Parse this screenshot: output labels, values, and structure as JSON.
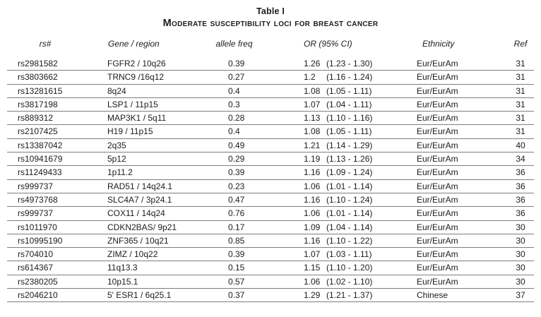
{
  "table": {
    "label": "Table I",
    "title": "Moderate susceptibility loci for breast cancer",
    "columns": [
      "rs#",
      "Gene / region",
      "allele freq",
      "OR (95% CI)",
      "Ethnicity",
      "Ref"
    ],
    "rows": [
      {
        "rs": "rs2981582",
        "gene": "FGFR2 / 10q26",
        "freq": "0.39",
        "or": "1.26",
        "ci": "(1.23 - 1.30)",
        "ethnicity": "Eur/EurAm",
        "ref": "31"
      },
      {
        "rs": "rs3803662",
        "gene": "TRNC9 /16q12",
        "freq": "0.27",
        "or": "1.2",
        "ci": "(1.16 - 1.24)",
        "ethnicity": "Eur/EurAm",
        "ref": "31"
      },
      {
        "rs": "rs13281615",
        "gene": "8q24",
        "freq": "0.4",
        "or": "1.08",
        "ci": "(1.05 - 1.11)",
        "ethnicity": "Eur/EurAm",
        "ref": "31"
      },
      {
        "rs": "rs3817198",
        "gene": "LSP1 / 11p15",
        "freq": "0.3",
        "or": "1.07",
        "ci": "(1.04 - 1.11)",
        "ethnicity": "Eur/EurAm",
        "ref": "31"
      },
      {
        "rs": "rs889312",
        "gene": "MAP3K1 / 5q11",
        "freq": "0.28",
        "or": "1.13",
        "ci": "(1.10 - 1.16)",
        "ethnicity": "Eur/EurAm",
        "ref": "31"
      },
      {
        "rs": "rs2107425",
        "gene": "H19 / 11p15",
        "freq": "0.4",
        "or": "1.08",
        "ci": "(1.05 - 1.11)",
        "ethnicity": "Eur/EurAm",
        "ref": "31"
      },
      {
        "rs": "rs13387042",
        "gene": "2q35",
        "freq": "0.49",
        "or": "1.21",
        "ci": "(1.14 - 1.29)",
        "ethnicity": "Eur/EurAm",
        "ref": "40"
      },
      {
        "rs": "rs10941679",
        "gene": "5p12",
        "freq": "0.29",
        "or": "1.19",
        "ci": "(1.13 - 1.26)",
        "ethnicity": "Eur/EurAm",
        "ref": "34"
      },
      {
        "rs": "rs11249433",
        "gene": "1p11.2",
        "freq": "0.39",
        "or": "1.16",
        "ci": "(1.09 - 1.24)",
        "ethnicity": "Eur/EurAm",
        "ref": "36"
      },
      {
        "rs": "rs999737",
        "gene": "RAD51 / 14q24.1",
        "freq": "0.23",
        "or": "1.06",
        "ci": "(1.01 - 1.14)",
        "ethnicity": "Eur/EurAm",
        "ref": "36"
      },
      {
        "rs": "rs4973768",
        "gene": "SLC4A7 / 3p24.1",
        "freq": "0.47",
        "or": "1.16",
        "ci": "(1.10 - 1.24)",
        "ethnicity": "Eur/EurAm",
        "ref": "36"
      },
      {
        "rs": "rs999737",
        "gene": "COX11 / 14q24",
        "freq": "0.76",
        "or": "1.06",
        "ci": "(1.01 - 1.14)",
        "ethnicity": "Eur/EurAm",
        "ref": "36"
      },
      {
        "rs": "rs1011970",
        "gene": "CDKN2BAS/ 9p21",
        "freq": "0.17",
        "or": "1.09",
        "ci": "(1.04 - 1.14)",
        "ethnicity": "Eur/EurAm",
        "ref": "30"
      },
      {
        "rs": "rs10995190",
        "gene": "ZNF365 / 10q21",
        "freq": "0.85",
        "or": "1.16",
        "ci": "(1.10 - 1.22)",
        "ethnicity": "Eur/EurAm",
        "ref": "30"
      },
      {
        "rs": "rs704010",
        "gene": "ZIMZ / 10q22",
        "freq": "0.39",
        "or": "1.07",
        "ci": "(1.03 - 1.11)",
        "ethnicity": "Eur/EurAm",
        "ref": "30"
      },
      {
        "rs": "rs614367",
        "gene": "11q13.3",
        "freq": "0.15",
        "or": "1.15",
        "ci": "(1.10 - 1.20)",
        "ethnicity": "Eur/EurAm",
        "ref": "30"
      },
      {
        "rs": "rs2380205",
        "gene": "10p15.1",
        "freq": "0.57",
        "or": "1.06",
        "ci": "(1.02 - 1.10)",
        "ethnicity": "Eur/EurAm",
        "ref": "30"
      },
      {
        "rs": "rs2046210",
        "gene": "5' ESR1 / 6q25.1",
        "freq": "0.37",
        "or": "1.29",
        "ci": "(1.21 - 1.37)",
        "ethnicity": "Chinese",
        "ref": "37"
      }
    ]
  },
  "colors": {
    "text": "#1c1c1c",
    "row_rule": "#7e7e7e",
    "background": "#ffffff"
  }
}
